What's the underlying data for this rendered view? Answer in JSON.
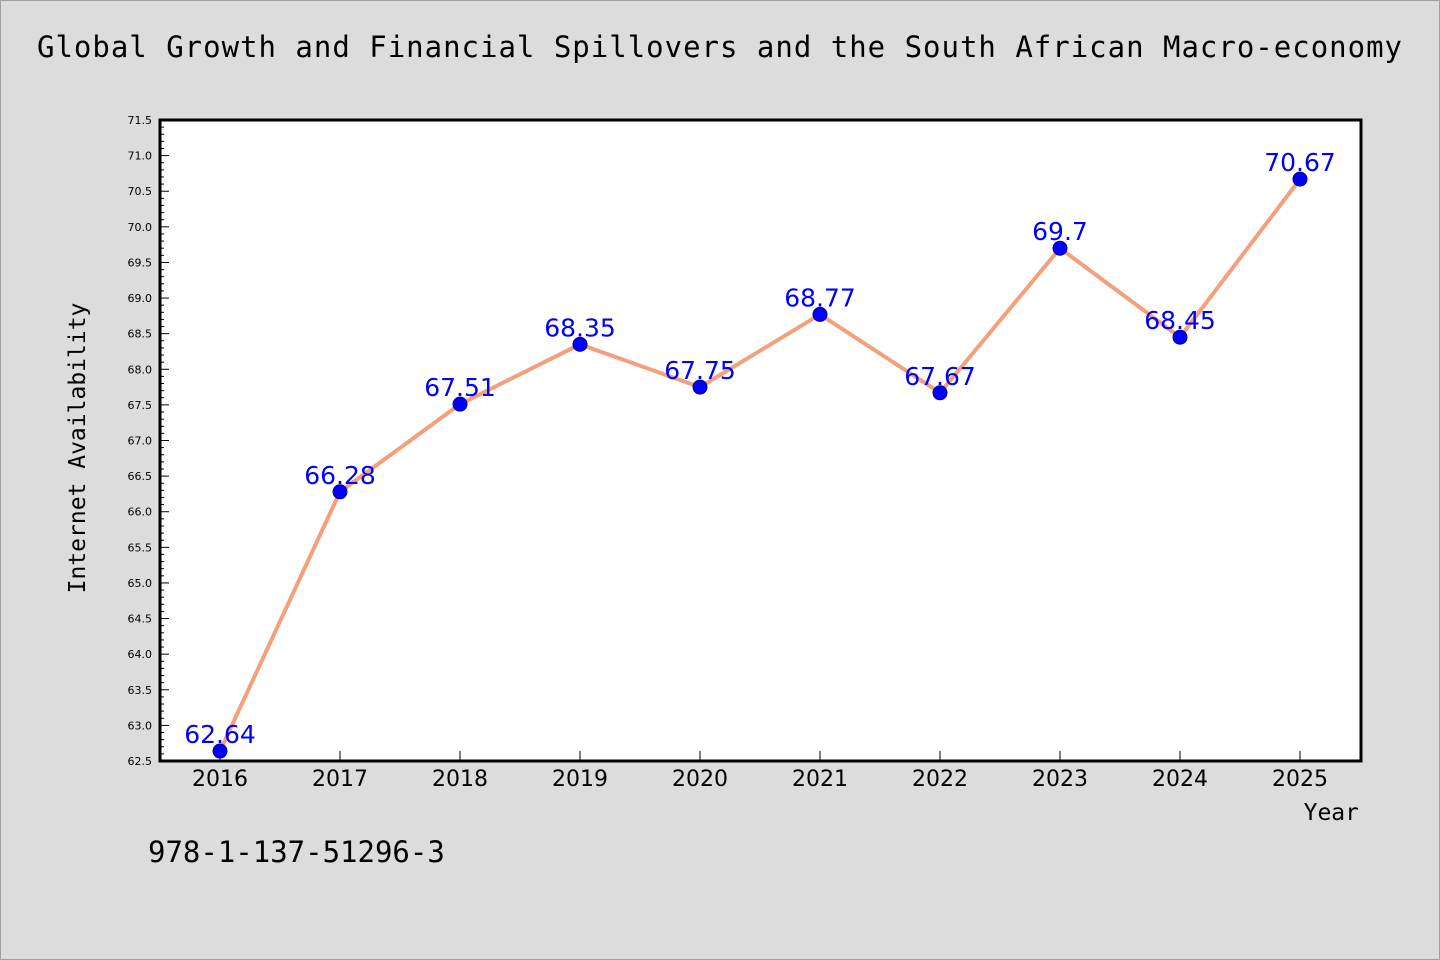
{
  "chart_data": {
    "type": "line",
    "title": "Global Growth and Financial Spillovers and the South African Macro-economy",
    "xlabel": "Year",
    "ylabel": "Internet Availability",
    "categories": [
      "2016",
      "2017",
      "2018",
      "2019",
      "2020",
      "2021",
      "2022",
      "2023",
      "2024",
      "2025"
    ],
    "series": [
      {
        "values": [
          62.64,
          66.28,
          67.51,
          68.35,
          67.75,
          68.77,
          67.67,
          69.7,
          68.45,
          70.67
        ],
        "labels": [
          "62.64",
          "66.28",
          "67.51",
          "68.35",
          "67.75",
          "68.77",
          "67.67",
          "69.7",
          "68.45",
          "70.67"
        ]
      }
    ],
    "ylim": [
      62.5,
      71.5
    ],
    "yticks": [
      "62.5",
      "63.0",
      "63.5",
      "64.0",
      "64.5",
      "65.0",
      "65.5",
      "66.0",
      "66.5",
      "67.0",
      "67.5",
      "68.0",
      "68.5",
      "69.0",
      "69.5",
      "70.0",
      "70.5",
      "71.0",
      "71.5"
    ],
    "grid": false,
    "legend": "none",
    "colors": {
      "line": "#f4a07c",
      "marker": "#0000ff",
      "data_label": "#0000ff",
      "background": "#dcdcdc",
      "plot_background": "#ffffff"
    }
  },
  "footer": {
    "isbn": "978-1-137-51296-3"
  }
}
